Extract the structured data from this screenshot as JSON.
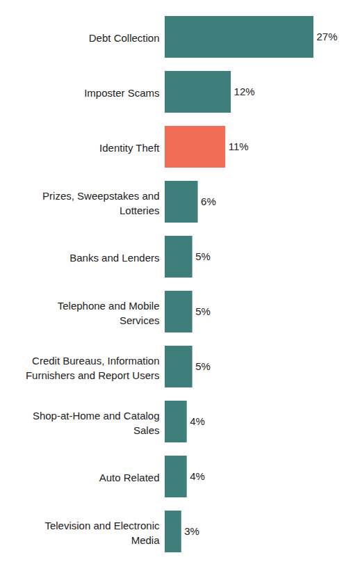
{
  "chart_data": {
    "type": "bar",
    "orientation": "horizontal",
    "categories": [
      "Debt Collection",
      "Imposter Scams",
      "Identity Theft",
      "Prizes, Sweepstakes and\nLotteries",
      "Banks and Lenders",
      "Telephone and Mobile\nServices",
      "Credit Bureaus, Information\nFurnishers and Report Users",
      "Shop-at-Home and Catalog\nSales",
      "Auto Related",
      "Television and Electronic\nMedia"
    ],
    "values": [
      27,
      12,
      11,
      6,
      5,
      5,
      5,
      4,
      4,
      3
    ],
    "value_labels": [
      "27%",
      "12%",
      "11%",
      "6%",
      "5%",
      "5%",
      "5%",
      "4%",
      "4%",
      "3%"
    ],
    "colors": [
      "#3f7f7b",
      "#3f7f7b",
      "#f26d55",
      "#3f7f7b",
      "#3f7f7b",
      "#3f7f7b",
      "#3f7f7b",
      "#3f7f7b",
      "#3f7f7b",
      "#3f7f7b"
    ],
    "data_labels": true,
    "tick_labels": "y",
    "grid": false
  }
}
